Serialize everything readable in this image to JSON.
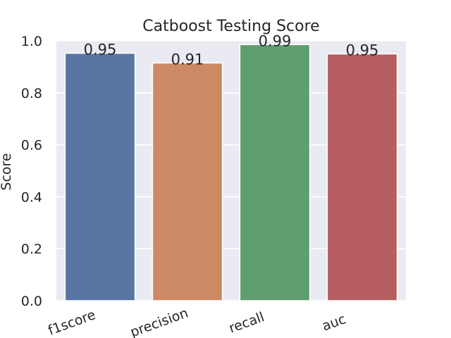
{
  "chart_data": {
    "type": "bar",
    "title": "Catboost Testing Score",
    "xlabel": "",
    "ylabel": "Score",
    "categories": [
      "f1score",
      "precision",
      "recall",
      "auc"
    ],
    "values": [
      0.9522,
      0.9147,
      0.9856,
      0.9496
    ],
    "data_labels": [
      "0.95",
      "0.91",
      "0.99",
      "0.95"
    ],
    "ylim": [
      0,
      1.0
    ],
    "yticks": [
      "0.0",
      "0.2",
      "0.4",
      "0.6",
      "0.8",
      "1.0"
    ],
    "grid": true,
    "legend": "none",
    "colors": [
      "#5975a4",
      "#cc8963",
      "#5f9e6e",
      "#b55d60"
    ],
    "plot_background": "#eaeaf2",
    "grid_color": "#ffffff"
  }
}
